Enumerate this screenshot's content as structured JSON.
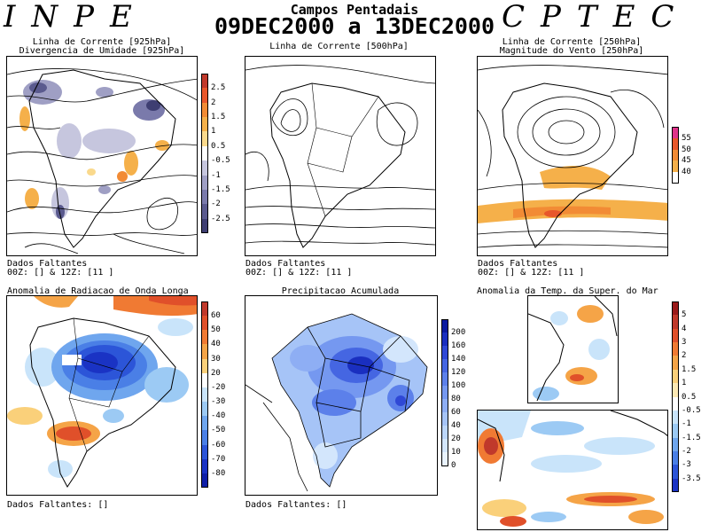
{
  "header": {
    "left_text": "INPE",
    "right_text": "CPTEC",
    "title": "Campos Pentadais",
    "date_range": "09DEC2000 a 13DEC2000"
  },
  "panels": {
    "streamline_925": {
      "title_line1": "Linha de Corrente [925hPa]",
      "title_line2": "Divergencia de Umidade [925hPa]",
      "missing_line1": "Dados Faltantes",
      "missing_line2": "00Z: [] & 12Z: [11 ]",
      "colorbar_labels": [
        "2.5",
        "2",
        "1.5",
        "1",
        "0.5",
        "-0.5",
        "-1",
        "-1.5",
        "-2",
        "-2.5"
      ],
      "colorbar_colors": [
        "#c0392b",
        "#e8572b",
        "#f28b35",
        "#f5b04a",
        "#fad98c",
        "#ffffff",
        "#c6c6de",
        "#9f9fc4",
        "#7a7aab",
        "#5a5a8e",
        "#3e3e72"
      ]
    },
    "streamline_500": {
      "title_line1": "Linha de Corrente [500hPa]",
      "missing_line1": "Dados Faltantes",
      "missing_line2": "00Z: [] & 12Z: [11 ]"
    },
    "streamline_250": {
      "title_line1": "Linha de Corrente [250hPa]",
      "title_line2": "Magnitude do Vento [250hPa]",
      "missing_line1": "Dados Faltantes",
      "missing_line2": "00Z: [] & 12Z: [11 ]",
      "colorbar_labels": [
        "55",
        "50",
        "45",
        "40"
      ],
      "colorbar_colors": [
        "#e0338a",
        "#e8572b",
        "#f28b35",
        "#f5b04a",
        "#ffffff"
      ]
    },
    "olr_anomaly": {
      "title": "Anomalia de Radiacao de Onda Longa",
      "missing": "Dados Faltantes: []",
      "colorbar_labels": [
        "60",
        "50",
        "40",
        "30",
        "20",
        "-20",
        "-30",
        "-40",
        "-50",
        "-60",
        "-70",
        "-80"
      ],
      "colorbar_colors": [
        "#c0392b",
        "#e0502a",
        "#f07a33",
        "#f5a447",
        "#fad07a",
        "#ffffff",
        "#c9e4fa",
        "#9ccaf4",
        "#6fa6ee",
        "#4a7fe6",
        "#2c55d8",
        "#1a33c4",
        "#0f1fa8"
      ]
    },
    "precipitation": {
      "title": "Precipitacao Acumulada",
      "missing": "Dados Faltantes: []",
      "colorbar_labels": [
        "200",
        "160",
        "140",
        "120",
        "100",
        "80",
        "60",
        "40",
        "20",
        "10",
        "0"
      ],
      "colorbar_colors": [
        "#0a1aa0",
        "#1a2fc0",
        "#2f48d6",
        "#4566e2",
        "#5c80ea",
        "#7598f0",
        "#8eaef4",
        "#a6c4f7",
        "#bcd6fa",
        "#d3e6fc",
        "#e9f3fe"
      ]
    },
    "sst_anomaly": {
      "title": "Anomalia da Temp. da Super. do Mar",
      "colorbar_labels": [
        "5",
        "4",
        "3",
        "2",
        "1.5",
        "1",
        "0.5",
        "-0.5",
        "-1",
        "-1.5",
        "-2",
        "-3",
        "-3.5"
      ],
      "colorbar_colors": [
        "#9a1a1a",
        "#c0392b",
        "#e0502a",
        "#f07a33",
        "#f5a447",
        "#fad07a",
        "#fde9b4",
        "#ffffff",
        "#c9e4fa",
        "#9ccaf4",
        "#6fa6ee",
        "#4a7fe6",
        "#2c55d8",
        "#1a33c4"
      ]
    }
  }
}
